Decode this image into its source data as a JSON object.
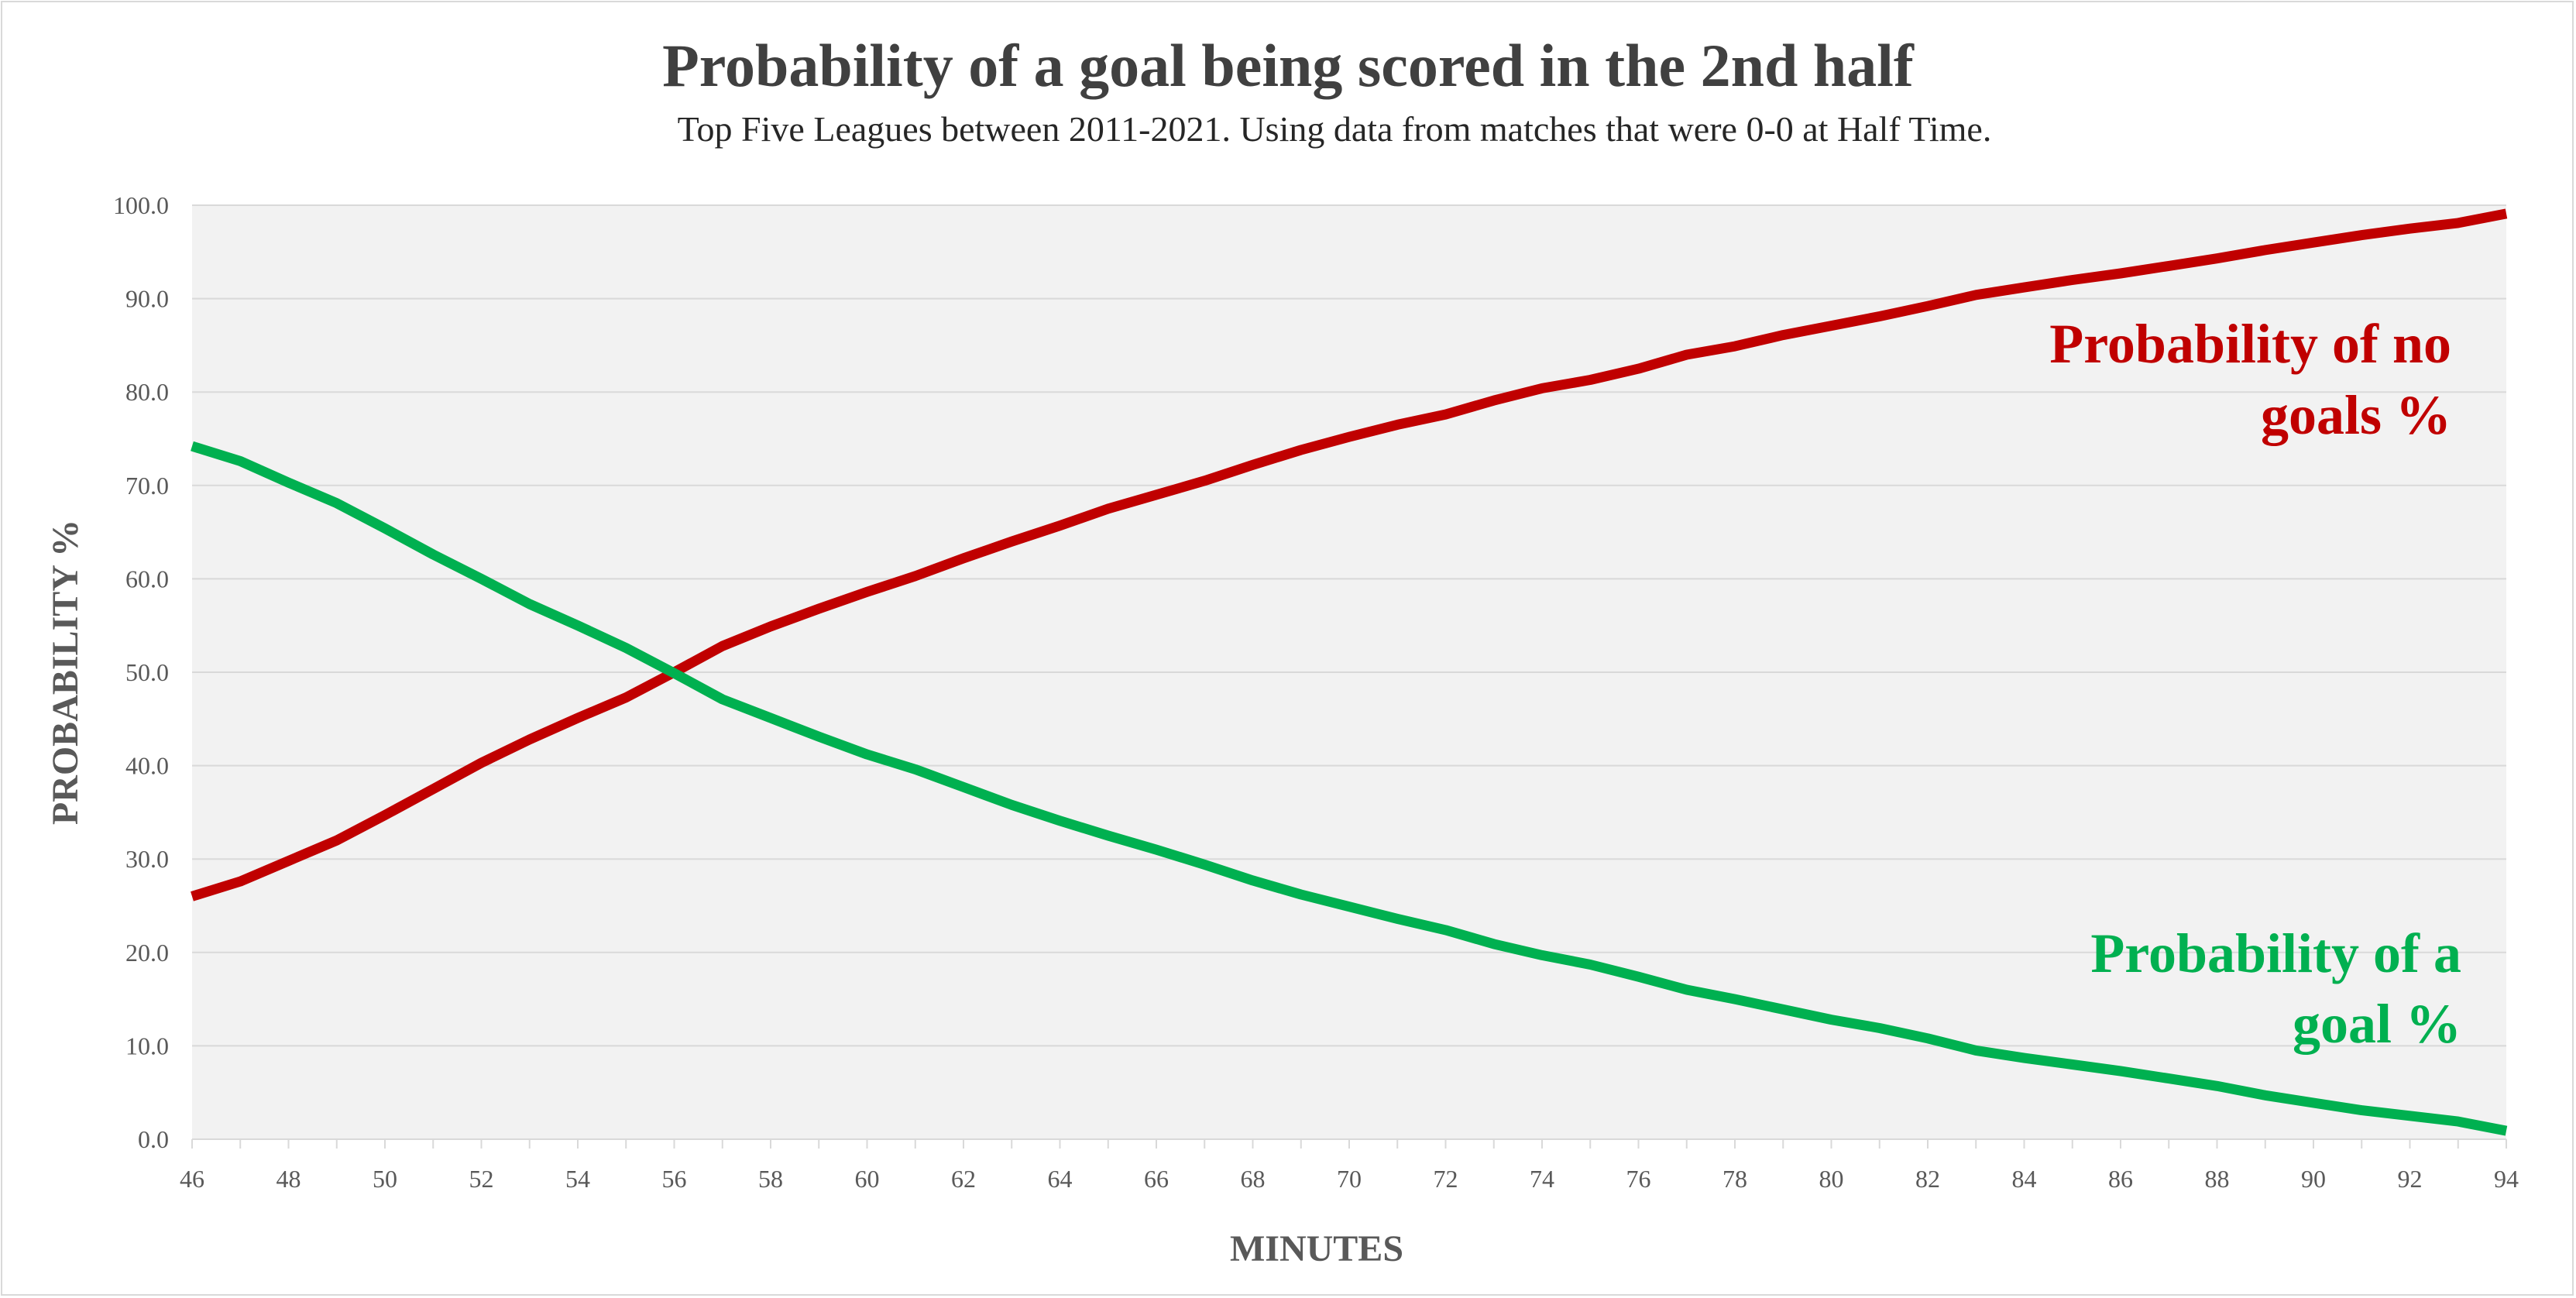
{
  "chart_data": {
    "type": "line",
    "title": "Probability of a goal being scored in the 2nd half",
    "subtitle": "Top Five Leagues between 2011-2021. Using data from matches that were 0-0 at Half Time.",
    "xlabel": "MINUTES",
    "ylabel": "PROBABILITY %",
    "xlim": [
      46,
      94
    ],
    "ylim": [
      0,
      100
    ],
    "x_ticks": [
      46,
      48,
      50,
      52,
      54,
      56,
      58,
      60,
      62,
      64,
      66,
      68,
      70,
      72,
      74,
      76,
      78,
      80,
      82,
      84,
      86,
      88,
      90,
      92,
      94
    ],
    "y_ticks": [
      "0.0",
      "10.0",
      "20.0",
      "30.0",
      "40.0",
      "50.0",
      "60.0",
      "70.0",
      "80.0",
      "90.0",
      "100.0"
    ],
    "grid": true,
    "legend": "none",
    "x": [
      46,
      47,
      48,
      49,
      50,
      51,
      52,
      53,
      54,
      55,
      56,
      57,
      58,
      59,
      60,
      61,
      62,
      63,
      64,
      65,
      66,
      67,
      68,
      69,
      70,
      71,
      72,
      73,
      74,
      75,
      76,
      77,
      78,
      79,
      80,
      81,
      82,
      83,
      84,
      85,
      86,
      87,
      88,
      89,
      90,
      91,
      92,
      93,
      94
    ],
    "series": [
      {
        "name": "Probability of no goals %",
        "color": "#c00000",
        "values": [
          26.0,
          27.6,
          29.8,
          32.0,
          34.7,
          37.5,
          40.3,
          42.8,
          45.1,
          47.3,
          50.0,
          52.8,
          54.9,
          56.8,
          58.6,
          60.3,
          62.2,
          64.0,
          65.7,
          67.5,
          69.0,
          70.5,
          72.2,
          73.8,
          75.2,
          76.5,
          77.6,
          79.1,
          80.4,
          81.3,
          82.5,
          84.0,
          84.9,
          86.1,
          87.1,
          88.1,
          89.2,
          90.4,
          91.2,
          92.0,
          92.7,
          93.5,
          94.3,
          95.2,
          96.0,
          96.8,
          97.5,
          98.1,
          99.1
        ]
      },
      {
        "name": "Probability of a goal %",
        "color": "#00b050",
        "values": [
          74.2,
          72.6,
          70.3,
          68.1,
          65.4,
          62.6,
          60.0,
          57.3,
          55.0,
          52.6,
          49.9,
          47.1,
          45.1,
          43.1,
          41.2,
          39.6,
          37.7,
          35.8,
          34.1,
          32.5,
          31.0,
          29.4,
          27.7,
          26.2,
          24.9,
          23.6,
          22.4,
          20.9,
          19.7,
          18.7,
          17.4,
          16.0,
          15.0,
          13.9,
          12.8,
          11.9,
          10.8,
          9.5,
          8.7,
          8.0,
          7.3,
          6.5,
          5.7,
          4.7,
          3.9,
          3.1,
          2.5,
          1.9,
          0.9
        ]
      }
    ],
    "annotations": [
      {
        "series": 0,
        "lines": [
          "Probability of no",
          "goals %"
        ]
      },
      {
        "series": 1,
        "lines": [
          "Probability of a",
          "goal %"
        ]
      }
    ]
  }
}
